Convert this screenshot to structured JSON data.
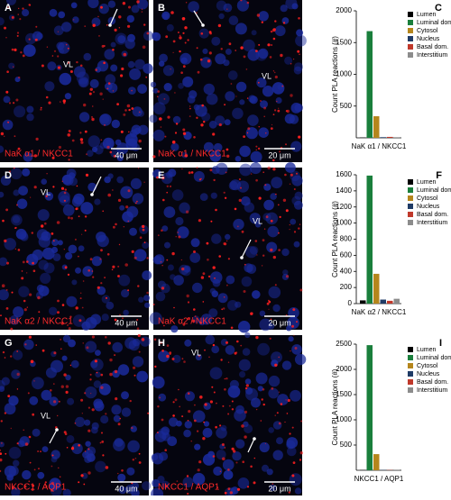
{
  "image_panels": [
    {
      "letter": "A",
      "channel": "NaK α1 / NKCC1",
      "scale": "40 μm",
      "region": "VL"
    },
    {
      "letter": "B",
      "channel": "NaK α1 / NKCC1",
      "scale": "20 μm",
      "region": "VL"
    },
    {
      "letter": "D",
      "channel": "NaK α2 / NKCC1",
      "scale": "40 μm",
      "region": "VL"
    },
    {
      "letter": "E",
      "channel": "NaK α2 / NKCC1",
      "scale": "20 μm",
      "region": "VL"
    },
    {
      "letter": "G",
      "channel": "NKCC1 / AQP1",
      "scale": "40 μm",
      "region": "VL"
    },
    {
      "letter": "H",
      "channel": "NKCC1 / AQP1",
      "scale": "20 μm",
      "region": "VL"
    }
  ],
  "chart_data": [
    {
      "type": "bar",
      "panel": "C",
      "y_label": "Count PLA reactions (#)",
      "categories": [
        "NaK α1 / NKCC1"
      ],
      "ylim": [
        0,
        2000
      ],
      "yticks": [
        500,
        1000,
        1500,
        2000
      ],
      "legend": "top-right",
      "series": [
        {
          "name": "Lumen",
          "color": "#000000",
          "values": [
            5
          ]
        },
        {
          "name": "Luminal dom.",
          "color": "#1a7f3c",
          "values": [
            1680
          ]
        },
        {
          "name": "Cytosol",
          "color": "#b5861c",
          "values": [
            340
          ]
        },
        {
          "name": "Nucleus",
          "color": "#1f3b66",
          "values": [
            10
          ]
        },
        {
          "name": "Basal dom.",
          "color": "#c0392b",
          "values": [
            15
          ]
        },
        {
          "name": "Interstitium",
          "color": "#8c8c8c",
          "values": [
            10
          ]
        }
      ]
    },
    {
      "type": "bar",
      "panel": "F",
      "y_label": "Count PLA reactions (#)",
      "categories": [
        "NaK α2 / NKCC1"
      ],
      "ylim": [
        0,
        1600
      ],
      "yticks": [
        0,
        200,
        400,
        600,
        800,
        1000,
        1200,
        1400,
        1600
      ],
      "legend": "top-right",
      "series": [
        {
          "name": "Lumen",
          "color": "#000000",
          "values": [
            40
          ]
        },
        {
          "name": "Luminal dom.",
          "color": "#1a7f3c",
          "values": [
            1590
          ]
        },
        {
          "name": "Cytosol",
          "color": "#b5861c",
          "values": [
            370
          ]
        },
        {
          "name": "Nucleus",
          "color": "#1f3b66",
          "values": [
            50
          ]
        },
        {
          "name": "Basal dom.",
          "color": "#c0392b",
          "values": [
            35
          ]
        },
        {
          "name": "Interstitium",
          "color": "#8c8c8c",
          "values": [
            60
          ]
        }
      ]
    },
    {
      "type": "bar",
      "panel": "I",
      "y_label": "Count PLA reactions (#)",
      "categories": [
        "NKCC1 / AQP1"
      ],
      "ylim": [
        0,
        2500
      ],
      "yticks": [
        500,
        1000,
        1500,
        2000,
        2500
      ],
      "legend": "top-right",
      "series": [
        {
          "name": "Lumen",
          "color": "#000000",
          "values": [
            5
          ]
        },
        {
          "name": "Luminal dom.",
          "color": "#1a7f3c",
          "values": [
            2480
          ]
        },
        {
          "name": "Cytosol",
          "color": "#b5861c",
          "values": [
            320
          ]
        },
        {
          "name": "Nucleus",
          "color": "#1f3b66",
          "values": [
            5
          ]
        },
        {
          "name": "Basal dom.",
          "color": "#c0392b",
          "values": [
            5
          ]
        },
        {
          "name": "Interstitium",
          "color": "#8c8c8c",
          "values": [
            5
          ]
        }
      ]
    }
  ]
}
